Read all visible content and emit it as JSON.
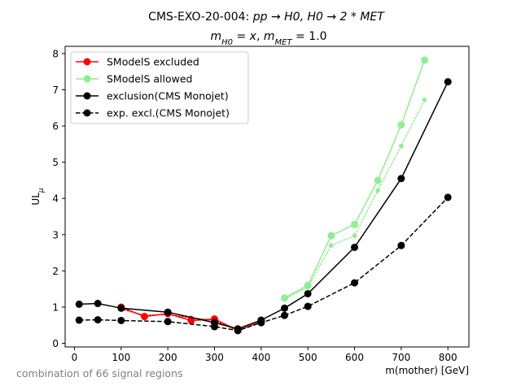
{
  "chart_data": {
    "type": "line",
    "title_line1_prefix": "CMS-EXO-20-004: ",
    "title_line1_math": "pp → H0, H0 → 2 * MET",
    "title_line2": "m_H0 = x, m_MET = 1.0",
    "xlabel": "m(mother) [GeV]",
    "ylabel": "UL_μ",
    "xlim": [
      -20,
      845
    ],
    "ylim": [
      -0.1,
      8.2
    ],
    "xticks": [
      0,
      100,
      200,
      300,
      400,
      500,
      600,
      700,
      800
    ],
    "yticks": [
      0,
      1,
      2,
      3,
      4,
      5,
      6,
      7,
      8
    ],
    "grid": false,
    "legend_position": "top-left",
    "footnote": "combination of 66 signal regions",
    "series": [
      {
        "name": "SModelS excluded",
        "color": "#ff0000",
        "style": "solid",
        "marker": true,
        "x": [
          100,
          150,
          200,
          250,
          300,
          350,
          400
        ],
        "y": [
          1.0,
          0.74,
          0.82,
          0.63,
          0.67,
          0.36,
          0.6
        ]
      },
      {
        "name": "SModelS allowed",
        "color": "#90ee90",
        "style": "solid",
        "marker": true,
        "x": [
          450,
          500,
          550,
          600,
          650,
          700,
          750
        ],
        "y": [
          1.25,
          1.6,
          2.97,
          3.28,
          4.5,
          6.03,
          7.82
        ]
      },
      {
        "name": "exclusion(CMS Monojet)",
        "color": "#000000",
        "style": "solid",
        "marker": true,
        "x": [
          10,
          50,
          100,
          200,
          300,
          350,
          400,
          450,
          500,
          600,
          700,
          800
        ],
        "y": [
          1.08,
          1.1,
          0.97,
          0.86,
          0.57,
          0.4,
          0.64,
          0.97,
          1.37,
          2.65,
          4.55,
          7.22
        ]
      },
      {
        "name": "exp. excl.(CMS Monojet)",
        "color": "#000000",
        "style": "dashed",
        "marker": true,
        "x": [
          10,
          50,
          100,
          200,
          300,
          350,
          400,
          450,
          500,
          600,
          700,
          800
        ],
        "y": [
          0.64,
          0.65,
          0.63,
          0.6,
          0.46,
          0.35,
          0.57,
          0.77,
          1.02,
          1.67,
          2.7,
          4.03
        ]
      }
    ],
    "unlabeled_dotted": [
      {
        "color": "#ff0000",
        "x": [
          100,
          150,
          200,
          250,
          300,
          350,
          400
        ],
        "y": [
          0.95,
          0.77,
          0.8,
          0.7,
          0.63,
          0.35,
          0.6
        ]
      },
      {
        "color": "#90ee90",
        "x": [
          450,
          500,
          550,
          600,
          650,
          700,
          750
        ],
        "y": [
          1.22,
          1.55,
          2.7,
          2.97,
          4.22,
          5.45,
          6.72
        ]
      }
    ]
  }
}
